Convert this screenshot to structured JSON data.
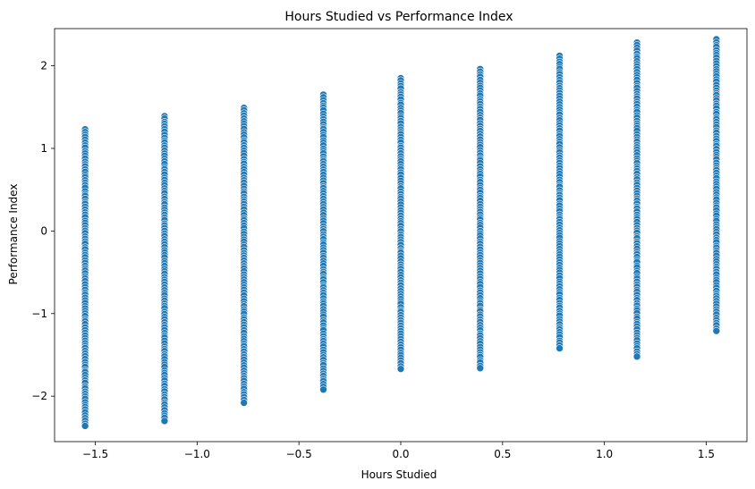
{
  "chart_data": {
    "type": "scatter",
    "title": "Hours Studied vs Performance Index",
    "xlabel": "Hours Studied",
    "ylabel": "Performance Index",
    "xlim": [
      -1.7,
      1.7
    ],
    "ylim": [
      -2.55,
      2.45
    ],
    "grid": false,
    "marker_color": "#1f77b4",
    "xticks": [
      -1.5,
      -1.0,
      -0.5,
      0.0,
      0.5,
      1.0,
      1.5
    ],
    "xtick_labels": [
      "−1.5",
      "−1.0",
      "−0.5",
      "0.0",
      "0.5",
      "1.0",
      "1.5"
    ],
    "yticks": [
      -2,
      -1,
      0,
      1,
      2
    ],
    "ytick_labels": [
      "−2",
      "−1",
      "0",
      "1",
      "2"
    ],
    "point_columns": [
      {
        "x": -1.55,
        "y_min": -2.36,
        "y_max": 1.23
      },
      {
        "x": -1.16,
        "y_min": -2.3,
        "y_max": 1.39
      },
      {
        "x": -0.77,
        "y_min": -2.08,
        "y_max": 1.49
      },
      {
        "x": -0.38,
        "y_min": -1.92,
        "y_max": 1.65
      },
      {
        "x": 0.0,
        "y_min": -1.67,
        "y_max": 1.85
      },
      {
        "x": 0.39,
        "y_min": -1.66,
        "y_max": 1.96
      },
      {
        "x": 0.78,
        "y_min": -1.42,
        "y_max": 2.12
      },
      {
        "x": 1.16,
        "y_min": -1.52,
        "y_max": 2.28
      },
      {
        "x": 1.55,
        "y_min": -1.21,
        "y_max": 2.32
      }
    ]
  }
}
